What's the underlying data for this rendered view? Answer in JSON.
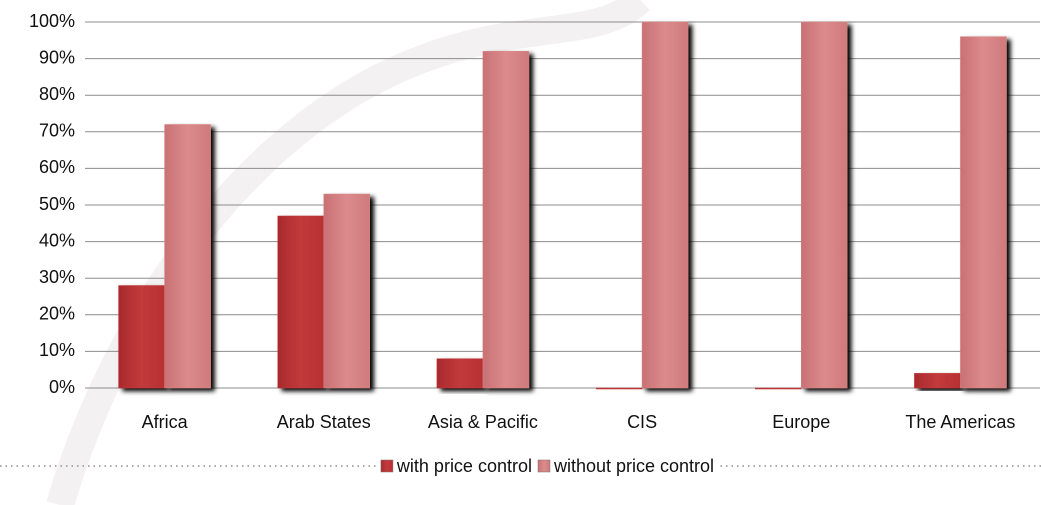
{
  "chart_data": {
    "type": "bar",
    "categories": [
      "Africa",
      "Arab States",
      "Asia & Pacific",
      "CIS",
      "Europe",
      "The Americas"
    ],
    "series": [
      {
        "name": "with price control",
        "color": "#c23a3c",
        "values": [
          28,
          47,
          8,
          0,
          0,
          4
        ]
      },
      {
        "name": "without price control",
        "color": "#d98587",
        "values": [
          72,
          53,
          92,
          100,
          100,
          96
        ]
      }
    ],
    "ylim": [
      0,
      100
    ],
    "yticks": [
      {
        "value": 0,
        "label": "0%"
      },
      {
        "value": 10,
        "label": "10%"
      },
      {
        "value": 20,
        "label": "20%"
      },
      {
        "value": 30,
        "label": "30%"
      },
      {
        "value": 40,
        "label": "40%"
      },
      {
        "value": 50,
        "label": "50%"
      },
      {
        "value": 60,
        "label": "60%"
      },
      {
        "value": 70,
        "label": "70%"
      },
      {
        "value": 80,
        "label": "80%"
      },
      {
        "value": 90,
        "label": "90%"
      },
      {
        "value": 100,
        "label": "100%"
      }
    ],
    "grid": true,
    "legend": "bottom"
  }
}
